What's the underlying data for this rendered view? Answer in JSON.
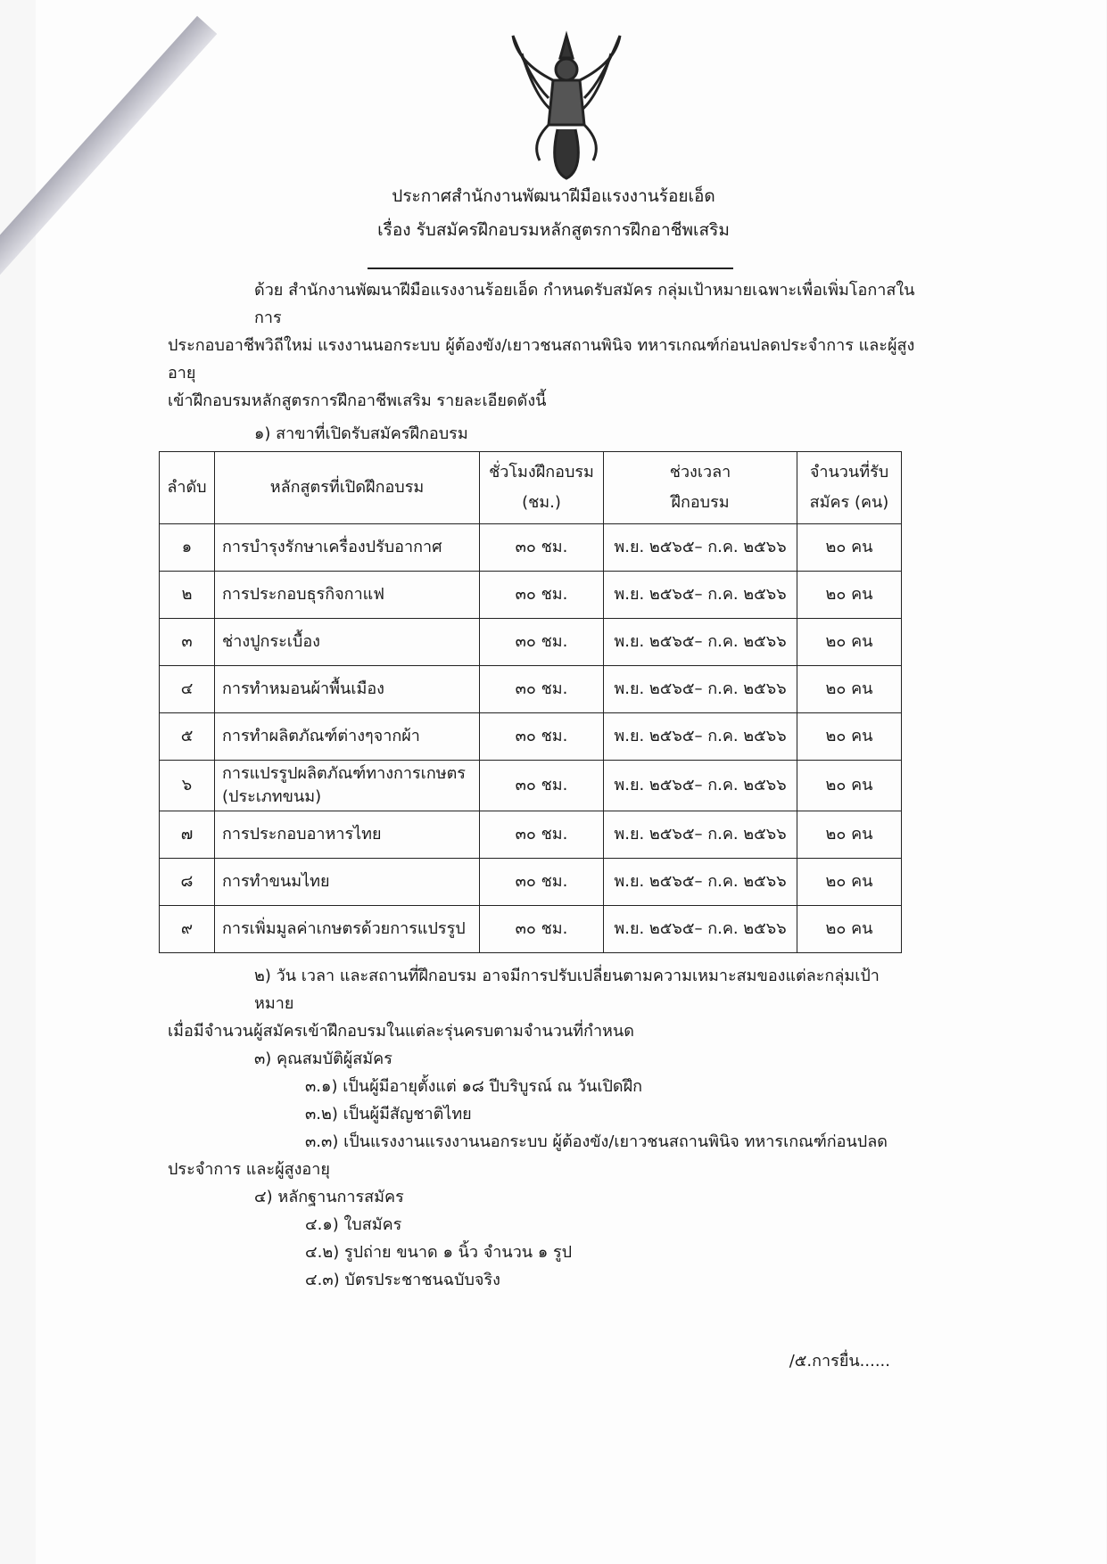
{
  "header": {
    "line1": "ประกาศสำนักงานพัฒนาฝีมือแรงงานร้อยเอ็ด",
    "line2": "เรื่อง  รับสมัครฝึกอบรมหลักสูตรการฝึกอาชีพเสริม"
  },
  "intro": [
    "ด้วย สำนักงานพัฒนาฝีมือแรงงานร้อยเอ็ด กำหนดรับสมัคร กลุ่มเป้าหมายเฉพาะเพื่อเพิ่มโอกาสในการ",
    "ประกอบอาชีพวิถีใหม่ แรงงานนอกระบบ ผู้ต้องขัง/เยาวชนสถานพินิจ ทหารเกณฑ์ก่อนปลดประจำการ และผู้สูงอายุ",
    "เข้าฝึกอบรมหลักสูตรการฝึกอาชีพเสริม รายละเอียดดังนี้"
  ],
  "section1": "๑) สาขาที่เปิดรับสมัครฝึกอบรม",
  "table": {
    "headers": [
      "ลำดับ",
      "หลักสูตรที่เปิดฝึกอบรม",
      "ชั่วโมงฝึกอบรม",
      "(ชม.)",
      "ช่วงเวลา",
      "ฝึกอบรม",
      "จำนวนที่รับ",
      "สมัคร (คน)"
    ],
    "rows": [
      {
        "no": "๑",
        "course": "การบำรุงรักษาเครื่องปรับอากาศ",
        "hours": "๓๐ ชม.",
        "period": "พ.ย. ๒๕๖๕– ก.ค. ๒๕๖๖",
        "seats": "๒๐ คน"
      },
      {
        "no": "๒",
        "course": "การประกอบธุรกิจกาแฟ",
        "hours": "๓๐ ชม.",
        "period": "พ.ย. ๒๕๖๕– ก.ค. ๒๕๖๖",
        "seats": "๒๐ คน"
      },
      {
        "no": "๓",
        "course": "ช่างปูกระเบื้อง",
        "hours": "๓๐ ชม.",
        "period": "พ.ย. ๒๕๖๕– ก.ค. ๒๕๖๖",
        "seats": "๒๐ คน"
      },
      {
        "no": "๔",
        "course": "การทำหมอนผ้าพื้นเมือง",
        "hours": "๓๐ ชม.",
        "period": "พ.ย. ๒๕๖๕– ก.ค. ๒๕๖๖",
        "seats": "๒๐ คน"
      },
      {
        "no": "๕",
        "course": "การทำผลิตภัณฑ์ต่างๆจากผ้า",
        "hours": "๓๐ ชม.",
        "period": "พ.ย. ๒๕๖๕– ก.ค. ๒๕๖๖",
        "seats": "๒๐ คน"
      },
      {
        "no": "๖",
        "course": "การแปรรูปผลิตภัณฑ์ทางการเกษตร",
        "course2": "(ประเภทขนม)",
        "hours": "๓๐ ชม.",
        "period": "พ.ย. ๒๕๖๕– ก.ค. ๒๕๖๖",
        "seats": "๒๐ คน"
      },
      {
        "no": "๗",
        "course": "การประกอบอาหารไทย",
        "hours": "๓๐ ชม.",
        "period": "พ.ย. ๒๕๖๕– ก.ค. ๒๕๖๖",
        "seats": "๒๐ คน"
      },
      {
        "no": "๘",
        "course": "การทำขนมไทย",
        "hours": "๓๐ ชม.",
        "period": "พ.ย. ๒๕๖๕– ก.ค. ๒๕๖๖",
        "seats": "๒๐ คน"
      },
      {
        "no": "๙",
        "course": "การเพิ่มมูลค่าเกษตรด้วยการแปรรูป",
        "hours": "๓๐ ชม.",
        "period": "พ.ย. ๒๕๖๕– ก.ค. ๒๕๖๖",
        "seats": "๒๐ คน"
      }
    ]
  },
  "section2": [
    "๒) วัน เวลา และสถานที่ฝึกอบรม อาจมีการปรับเปลี่ยนตามความเหมาะสมของแต่ละกลุ่มเป้าหมาย",
    "เมื่อมีจำนวนผู้สมัครเข้าฝึกอบรมในแต่ละรุ่นครบตามจำนวนที่กำหนด"
  ],
  "section3": {
    "title": "๓) คุณสมบัติผู้สมัคร",
    "items": [
      "๓.๑) เป็นผู้มีอายุตั้งแต่ ๑๘ ปีบริบูรณ์ ณ วันเปิดฝึก",
      "๓.๒) เป็นผู้มีสัญชาติไทย",
      "๓.๓) เป็นแรงงานแรงงานนอกระบบ ผู้ต้องขัง/เยาวชนสถานพินิจ ทหารเกณฑ์ก่อนปลด"
    ],
    "cont": "ประจำการ และผู้สูงอายุ"
  },
  "section4": {
    "title": "๔) หลักฐานการสมัคร",
    "items": [
      "๔.๑) ใบสมัคร",
      "๔.๒) รูปถ่าย ขนาด ๑ นิ้ว จำนวน ๑ รูป",
      "๔.๓) บัตรประชาชนฉบับจริง"
    ]
  },
  "footer": "/๕.การยื่น......",
  "emblem": "garuda-emblem"
}
